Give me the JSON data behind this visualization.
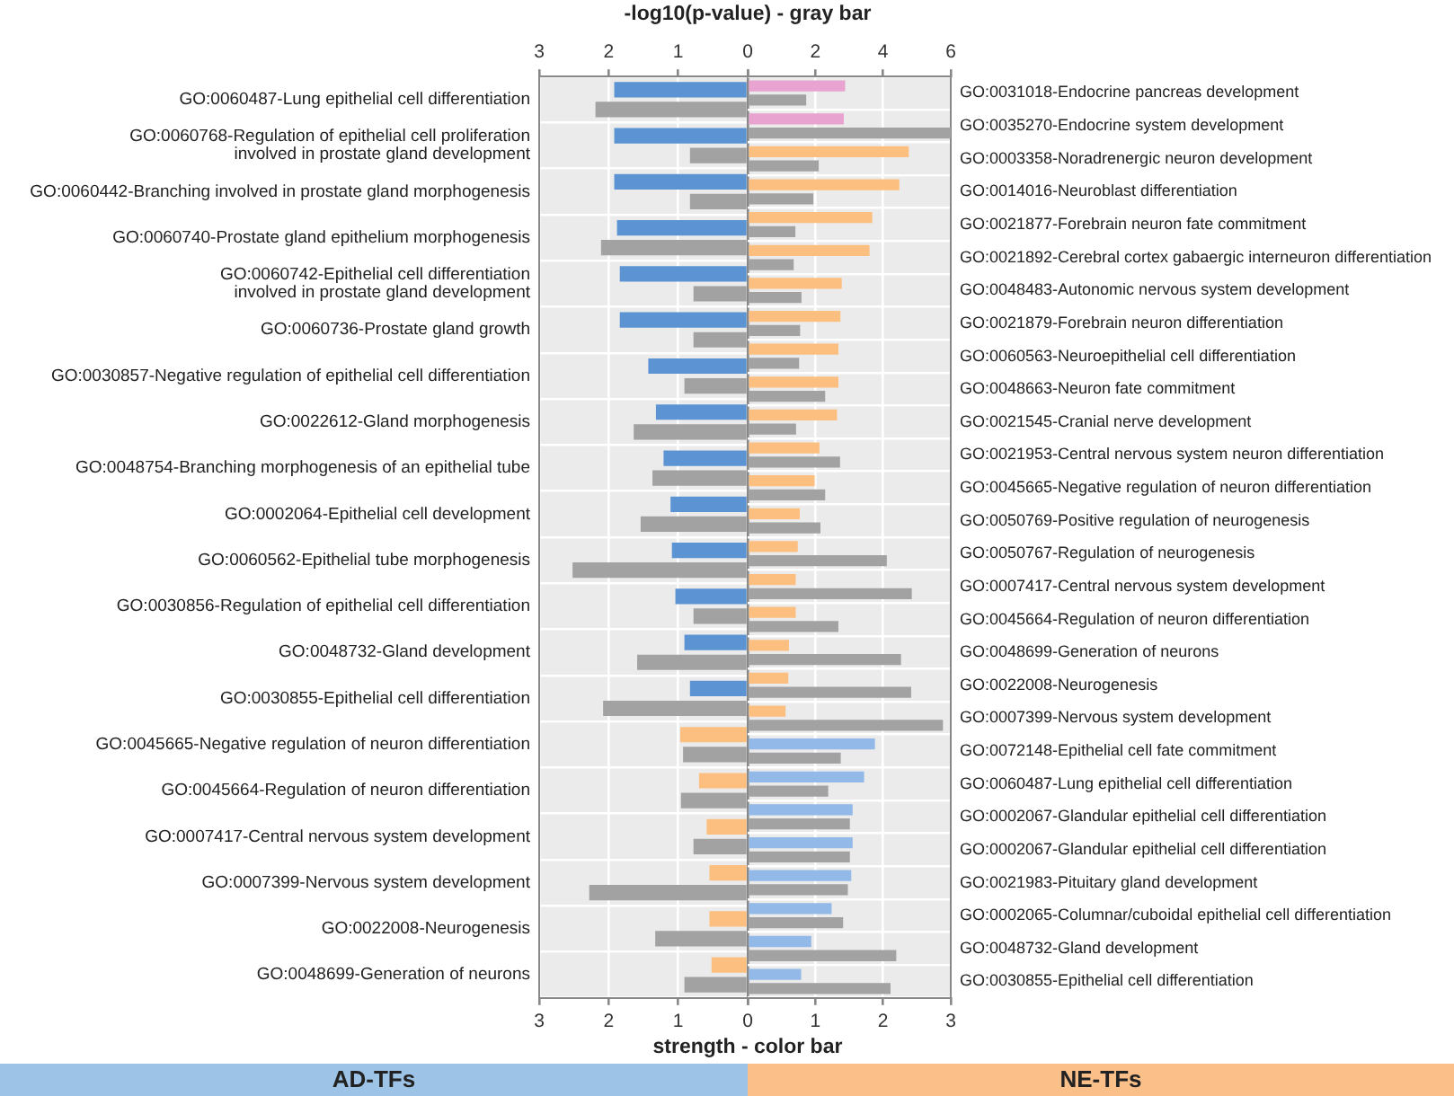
{
  "chart_data": [
    {
      "type": "bar",
      "orientation": "horizontal",
      "grid": true,
      "legend": false,
      "x2label": "-log10(p-value) - gray bar",
      "xlabel": "strength - color bar",
      "categories": [
        "GO:0060487-Lung epithelial cell differentiation",
        "GO:0060768-Regulation of epithelial cell proliferation\ninvolved in prostate gland development",
        "GO:0060442-Branching involved in prostate gland morphogenesis",
        "GO:0060740-Prostate gland epithelium morphogenesis",
        "GO:0060742-Epithelial cell differentiation\ninvolved in prostate gland development",
        "GO:0060736-Prostate gland growth",
        "GO:0030857-Negative regulation of epithelial cell differentiation",
        "GO:0022612-Gland morphogenesis",
        "GO:0048754-Branching morphogenesis of an epithelial tube",
        "GO:0002064-Epithelial cell development",
        "GO:0060562-Epithelial tube morphogenesis",
        "GO:0030856-Regulation of epithelial cell differentiation",
        "GO:0048732-Gland development",
        "GO:0030855-Epithelial cell differentiation",
        "GO:0045665-Negative regulation of neuron differentiation",
        "GO:0045664-Regulation of neuron differentiation",
        "GO:0007417-Central nervous system development",
        "GO:0007399-Nervous system development",
        "GO:0022008-Neurogenesis",
        "GO:0048699-Generation of neurons"
      ],
      "xlim": [
        3,
        0
      ],
      "xticks": [
        3,
        2,
        1,
        0
      ],
      "x2lim": [
        3,
        0
      ],
      "x2ticks": [
        3,
        2,
        1,
        0
      ],
      "series": [
        {
          "colors": [
            "#5b93d3",
            "#5b93d3",
            "#5b93d3",
            "#5b93d3",
            "#5b93d3",
            "#5b93d3",
            "#5b93d3",
            "#5b93d3",
            "#5b93d3",
            "#5b93d3",
            "#5b93d3",
            "#5b93d3",
            "#5b93d3",
            "#5b93d3",
            "#fdbf80",
            "#fdbf80",
            "#fdbf80",
            "#fdbf80",
            "#fdbf80",
            "#fdbf80"
          ],
          "values": [
            1.92,
            1.92,
            1.92,
            1.88,
            1.84,
            1.84,
            1.43,
            1.32,
            1.21,
            1.11,
            1.09,
            1.04,
            0.91,
            0.83,
            0.97,
            0.7,
            0.59,
            0.55,
            0.55,
            0.52
          ]
        },
        {
          "color": "#a2a2a2",
          "axis": "x2",
          "values": [
            2.19,
            0.83,
            0.83,
            2.11,
            0.78,
            0.78,
            0.91,
            1.64,
            1.37,
            1.54,
            2.52,
            0.78,
            1.59,
            2.08,
            0.93,
            0.96,
            0.78,
            2.28,
            1.33,
            0.91
          ]
        }
      ],
      "annotations": [
        "AD-TFs"
      ]
    },
    {
      "type": "bar",
      "orientation": "horizontal",
      "grid": true,
      "legend": false,
      "categories": [
        "GO:0031018-Endocrine pancreas development",
        "GO:0035270-Endocrine system development",
        "GO:0003358-Noradrenergic neuron development",
        "GO:0014016-Neuroblast differentiation",
        "GO:0021877-Forebrain neuron fate commitment",
        "GO:0021892-Cerebral cortex gabaergic interneuron differentiation",
        "GO:0048483-Autonomic nervous system development",
        "GO:0021879-Forebrain neuron differentiation",
        "GO:0060563-Neuroepithelial cell differentiation",
        "GO:0048663-Neuron fate commitment",
        "GO:0021545-Cranial nerve development",
        "GO:0021953-Central nervous system neuron differentiation",
        "GO:0045665-Negative regulation of neuron differentiation",
        "GO:0050769-Positive regulation of neurogenesis",
        "GO:0050767-Regulation of neurogenesis",
        "GO:0007417-Central nervous system development",
        "GO:0045664-Regulation of neuron differentiation",
        "GO:0048699-Generation of neurons",
        "GO:0022008-Neurogenesis",
        "GO:0007399-Nervous system development",
        "GO:0072148-Epithelial cell fate commitment",
        "GO:0060487-Lung epithelial cell differentiation",
        "GO:0002067-Glandular epithelial cell differentiation",
        "GO:0002067-Glandular epithelial cell differentiation",
        "GO:0021983-Pituitary gland development",
        "GO:0002065-Columnar/cuboidal epithelial cell differentiation",
        "GO:0048732-Gland development",
        "GO:0030855-Epithelial cell differentiation"
      ],
      "xlim": [
        0,
        3
      ],
      "xticks": [
        {
          "value": 0,
          "label": null
        },
        1,
        2,
        3
      ],
      "x2lim": [
        0,
        6
      ],
      "x2ticks": [
        {
          "value": 0,
          "label": null
        },
        2,
        4,
        6
      ],
      "series": [
        {
          "colors": [
            "#e9a3d0",
            "#e9a3d0",
            "#fdbf80",
            "#fdbf80",
            "#fdbf80",
            "#fdbf80",
            "#fdbf80",
            "#fdbf80",
            "#fdbf80",
            "#fdbf80",
            "#fdbf80",
            "#fdbf80",
            "#fdbf80",
            "#fdbf80",
            "#fdbf80",
            "#fdbf80",
            "#fdbf80",
            "#fdbf80",
            "#fdbf80",
            "#fdbf80",
            "#92b9e8",
            "#92b9e8",
            "#92b9e8",
            "#92b9e8",
            "#92b9e8",
            "#92b9e8",
            "#92b9e8",
            "#92b9e8"
          ],
          "values": [
            1.44,
            1.42,
            2.38,
            2.24,
            1.84,
            1.8,
            1.39,
            1.37,
            1.34,
            1.34,
            1.32,
            1.06,
            0.99,
            0.77,
            0.74,
            0.71,
            0.71,
            0.61,
            0.6,
            0.56,
            1.88,
            1.72,
            1.55,
            1.55,
            1.53,
            1.24,
            0.94,
            0.79
          ]
        },
        {
          "color": "#a2a2a2",
          "axis": "x2",
          "values": [
            1.73,
            6.0,
            2.1,
            1.94,
            1.41,
            1.36,
            1.59,
            1.55,
            1.52,
            2.29,
            1.43,
            2.73,
            2.29,
            2.15,
            4.11,
            4.85,
            2.68,
            4.53,
            4.83,
            5.77,
            2.75,
            2.38,
            3.02,
            3.02,
            2.96,
            2.82,
            4.39,
            4.22
          ]
        }
      ],
      "annotations": [
        "NE-TFs"
      ]
    }
  ]
}
